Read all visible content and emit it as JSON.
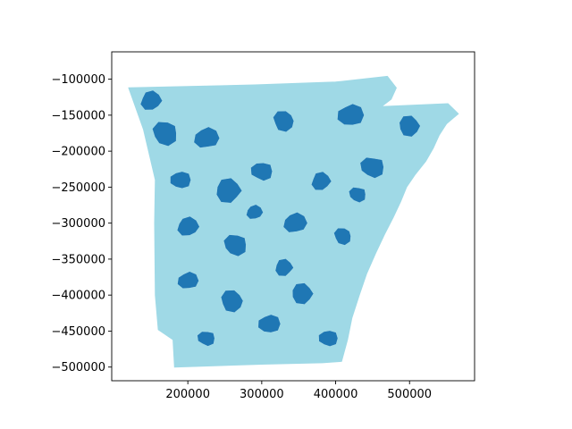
{
  "chart_data": {
    "type": "choropleth-map",
    "title": "",
    "xlabel": "",
    "ylabel": "",
    "xlim": [
      97000,
      588000
    ],
    "ylim": [
      -519000,
      -62000
    ],
    "x_ticks": [
      200000,
      300000,
      400000,
      500000
    ],
    "y_ticks": [
      -100000,
      -150000,
      -200000,
      -250000,
      -300000,
      -350000,
      -400000,
      -450000,
      -500000
    ],
    "x_tick_labels": [
      "200000",
      "300000",
      "400000",
      "500000"
    ],
    "y_tick_labels": [
      "−100000",
      "−150000",
      "−200000",
      "−250000",
      "−300000",
      "−350000",
      "−400000",
      "−450000",
      "−500000"
    ],
    "grid": false,
    "legend": "none",
    "colors": {
      "light": "#9fd9e6",
      "dark": "#1f77b4",
      "frame": "#000000"
    },
    "outline": [
      [
        120000,
        -112000
      ],
      [
        290000,
        -108000
      ],
      [
        400000,
        -104000
      ],
      [
        470000,
        -96000
      ],
      [
        482000,
        -112000
      ],
      [
        475000,
        -128000
      ],
      [
        462000,
        -138000
      ],
      [
        552000,
        -134000
      ],
      [
        566000,
        -148000
      ],
      [
        550000,
        -162000
      ],
      [
        540000,
        -178000
      ],
      [
        532000,
        -196000
      ],
      [
        522000,
        -214000
      ],
      [
        508000,
        -232000
      ],
      [
        496000,
        -250000
      ],
      [
        488000,
        -270000
      ],
      [
        478000,
        -292000
      ],
      [
        466000,
        -316000
      ],
      [
        454000,
        -342000
      ],
      [
        442000,
        -370000
      ],
      [
        432000,
        -400000
      ],
      [
        422000,
        -432000
      ],
      [
        416000,
        -462000
      ],
      [
        408000,
        -492000
      ],
      [
        382000,
        -494000
      ],
      [
        300000,
        -496000
      ],
      [
        182000,
        -500000
      ],
      [
        180000,
        -462000
      ],
      [
        160000,
        -448000
      ],
      [
        156000,
        -400000
      ],
      [
        155000,
        -300000
      ],
      [
        156000,
        -240000
      ],
      [
        140000,
        -170000
      ]
    ],
    "regions": [
      {
        "c": [
          170000,
          -175000
        ],
        "r": 20000,
        "shade": "dark"
      },
      {
        "c": [
          225000,
          -182000
        ],
        "r": 18000,
        "shade": "dark"
      },
      {
        "c": [
          330000,
          -158000
        ],
        "r": 17000,
        "shade": "dark"
      },
      {
        "c": [
          420000,
          -150000
        ],
        "r": 19000,
        "shade": "dark"
      },
      {
        "c": [
          500000,
          -165000
        ],
        "r": 17000,
        "shade": "dark"
      },
      {
        "c": [
          190000,
          -240000
        ],
        "r": 15000,
        "shade": "dark"
      },
      {
        "c": [
          255000,
          -255000
        ],
        "r": 20000,
        "shade": "dark"
      },
      {
        "c": [
          300000,
          -228000
        ],
        "r": 16000,
        "shade": "dark"
      },
      {
        "c": [
          380000,
          -242000
        ],
        "r": 15000,
        "shade": "dark"
      },
      {
        "c": [
          450000,
          -222000
        ],
        "r": 18000,
        "shade": "dark"
      },
      {
        "c": [
          200000,
          -305000
        ],
        "r": 16000,
        "shade": "dark"
      },
      {
        "c": [
          265000,
          -330000
        ],
        "r": 18000,
        "shade": "dark"
      },
      {
        "c": [
          345000,
          -300000
        ],
        "r": 17000,
        "shade": "dark"
      },
      {
        "c": [
          410000,
          -318000
        ],
        "r": 14000,
        "shade": "dark"
      },
      {
        "c": [
          200000,
          -380000
        ],
        "r": 15000,
        "shade": "dark"
      },
      {
        "c": [
          260000,
          -408000
        ],
        "r": 18000,
        "shade": "dark"
      },
      {
        "c": [
          310000,
          -440000
        ],
        "r": 16000,
        "shade": "dark"
      },
      {
        "c": [
          355000,
          -398000
        ],
        "r": 17000,
        "shade": "dark"
      },
      {
        "c": [
          390000,
          -460000
        ],
        "r": 14000,
        "shade": "dark"
      },
      {
        "c": [
          330000,
          -362000
        ],
        "r": 14000,
        "shade": "dark"
      },
      {
        "c": [
          225000,
          -460000
        ],
        "r": 13000,
        "shade": "dark"
      },
      {
        "c": [
          150000,
          -130000
        ],
        "r": 16000,
        "shade": "dark"
      },
      {
        "c": [
          430000,
          -260000
        ],
        "r": 13000,
        "shade": "dark"
      },
      {
        "c": [
          290000,
          -285000
        ],
        "r": 12000,
        "shade": "dark"
      }
    ]
  }
}
